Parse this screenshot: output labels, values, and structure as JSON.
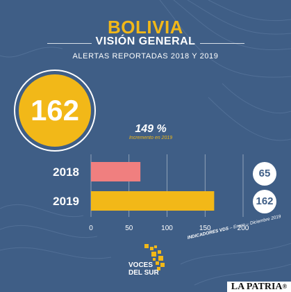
{
  "header": {
    "title": "BOLIVIA",
    "subtitle": "VISIÓN GENERAL",
    "caption": "ALERTAS REPORTADAS 2018 Y 2019"
  },
  "highlight": {
    "total": "162",
    "increase": "149 %",
    "increase_note": "Incremento en 2019"
  },
  "chart_data": {
    "type": "bar",
    "orientation": "horizontal",
    "categories": [
      "2018",
      "2019"
    ],
    "values": [
      65,
      162
    ],
    "value_labels": [
      "65",
      "162"
    ],
    "xlim": [
      0,
      200
    ],
    "xticks": [
      "0",
      "50",
      "100",
      "150",
      "200"
    ],
    "grid": true,
    "colors": {
      "2018": "#f07f7f",
      "2019": "#f2b818"
    }
  },
  "footer": {
    "source_bold": "INDICADORES VDS",
    "source_rest": " – Enero – Diciembre 2019",
    "logo_line1": "VOCES",
    "logo_line2": "DEL SUR"
  },
  "watermark": {
    "name": "LA PATRIA",
    "mark": "®"
  },
  "colors": {
    "background": "#3f5e86",
    "accent": "#f2b818",
    "bar_2018": "#f07f7f",
    "text": "#ffffff"
  }
}
